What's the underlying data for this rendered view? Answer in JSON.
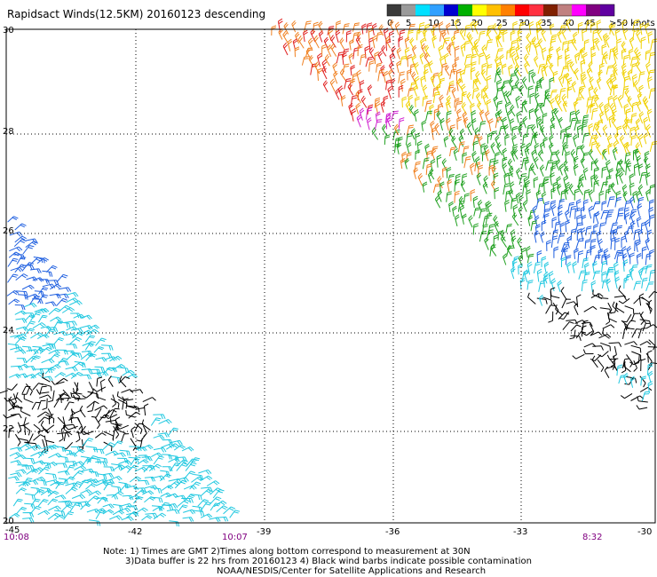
{
  "title": "Rapidsact Winds(12.5KM) 20160123 descending",
  "legend": {
    "tick_labels": [
      "0",
      "5",
      "10",
      "15",
      "20",
      "25",
      "30",
      "35",
      "40",
      "45",
      ">50 knots"
    ],
    "colors": [
      "#3a3a3a",
      "#9a9a9a",
      "#00e0ff",
      "#30a0ff",
      "#0000d0",
      "#00b000",
      "#ffff00",
      "#ffc000",
      "#ff8000",
      "#ff0000",
      "#ff3040",
      "#802000",
      "#c08080",
      "#ff00ff",
      "#800080",
      "#6000a0"
    ]
  },
  "lat_labels": [
    "30",
    "28",
    "26",
    "24",
    "22",
    "20"
  ],
  "lon_labels": [
    "-45",
    "-42",
    "-39",
    "-36",
    "-33",
    "-30"
  ],
  "time_labels": [
    "10:08",
    "10:07",
    "8:32"
  ],
  "notes": [
    "Note: 1) Times are GMT 2)Times along bottom correspond to measurement at 30N",
    "3)Data buffer is 22 hrs from 20160123 4) Black wind barbs indicate possible contamination",
    "NOAA/NESDIS/Center for Satellite Applications and Research"
  ],
  "style_colors": {
    "barb_black": "#000000",
    "barb_cyan": "#20c8e0",
    "barb_blue": "#2060e0",
    "barb_green": "#20a020",
    "barb_yellow": "#f0d000",
    "barb_orange": "#f08020",
    "barb_red": "#e02020",
    "barb_magenta": "#d020d0",
    "time_label": "#800080"
  }
}
